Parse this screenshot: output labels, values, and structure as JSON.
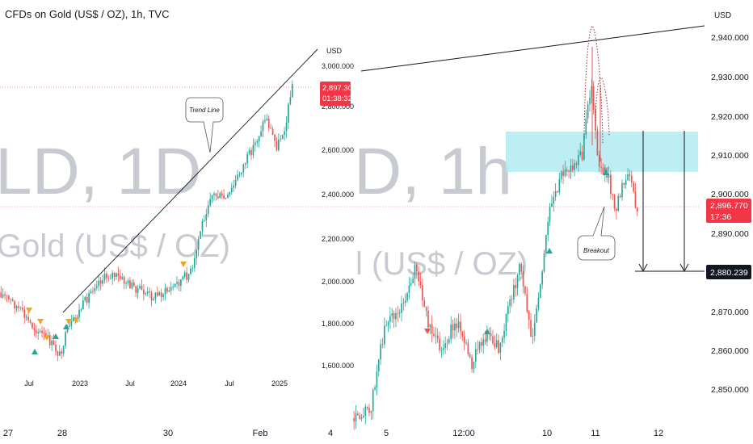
{
  "header": {
    "title": "CFDs on Gold (US$ / OZ), 1h, TVC"
  },
  "watermark": {
    "daily_symbol": "LD, 1D",
    "daily_desc": "Gold (US$ / OZ)",
    "hourly_symbol": "D, 1h",
    "hourly_desc": "l (US$ / OZ)"
  },
  "daily_chart": {
    "currency": "USD",
    "y_ticks": [
      "3,000.000",
      "2,800.000",
      "2,600.000",
      "2,400.000",
      "2,200.000",
      "2,000.000",
      "1,800.000",
      "1,600.000"
    ],
    "x_ticks": [
      "Jul",
      "2023",
      "Jul",
      "2024",
      "Jul",
      "2025"
    ],
    "last_price_label": "2,897.305",
    "countdown_label": "01:38:32",
    "annotation": "Trend Line",
    "colors": {
      "up": "#26a69a",
      "down": "#ef5350",
      "last_price": "#f23645",
      "signal_up": "#26a69a",
      "signal_down": "#f7a21b"
    }
  },
  "hourly_chart": {
    "currency": "USD",
    "y_ticks": [
      "2,940.000",
      "2,930.000",
      "2,920.000",
      "2,910.000",
      "2,900.000",
      "2,890.000",
      "2,870.000",
      "2,860.000",
      "2,850.000"
    ],
    "x_ticks": [
      "27",
      "28",
      "30",
      "Feb",
      "4",
      "5",
      "12:00",
      "10",
      "11",
      "12"
    ],
    "last_price_label": "2,896.770",
    "countdown_label": "17:36",
    "target_label": "2,880.239",
    "annotation": "Breakout",
    "colors": {
      "up": "#26a69a",
      "down": "#ef5350",
      "zone": "#b2ebf2",
      "last_price": "#f23645"
    }
  },
  "chart_data": [
    {
      "type": "candlestick",
      "timeframe": "1D",
      "x_range": [
        "2022-05",
        "2025-02"
      ],
      "ylim": [
        1600,
        3000
      ],
      "x": [
        "2022-07",
        "2022-09",
        "2022-11",
        "2023-01",
        "2023-03",
        "2023-05",
        "2023-07",
        "2023-09",
        "2023-11",
        "2024-01",
        "2024-03",
        "2024-05",
        "2024-07",
        "2024-09",
        "2024-11",
        "2025-01",
        "2025-02"
      ],
      "close": [
        1720,
        1680,
        1760,
        1920,
        1960,
        1980,
        1960,
        1900,
        1980,
        2040,
        2200,
        2350,
        2420,
        2620,
        2650,
        2760,
        2897.305
      ],
      "trend_line": {
        "from": [
          "2022-11",
          1630
        ],
        "to": [
          "2025-02",
          3000
        ]
      },
      "annotations": [
        "Trend Line"
      ]
    },
    {
      "type": "candlestick",
      "timeframe": "1h",
      "ylim": [
        2843,
        2945
      ],
      "zone": {
        "low": 2905.5,
        "high": 2916.5
      },
      "target_level": 2880.239,
      "last_price": 2896.77,
      "annotations": [
        "Breakout"
      ]
    }
  ]
}
